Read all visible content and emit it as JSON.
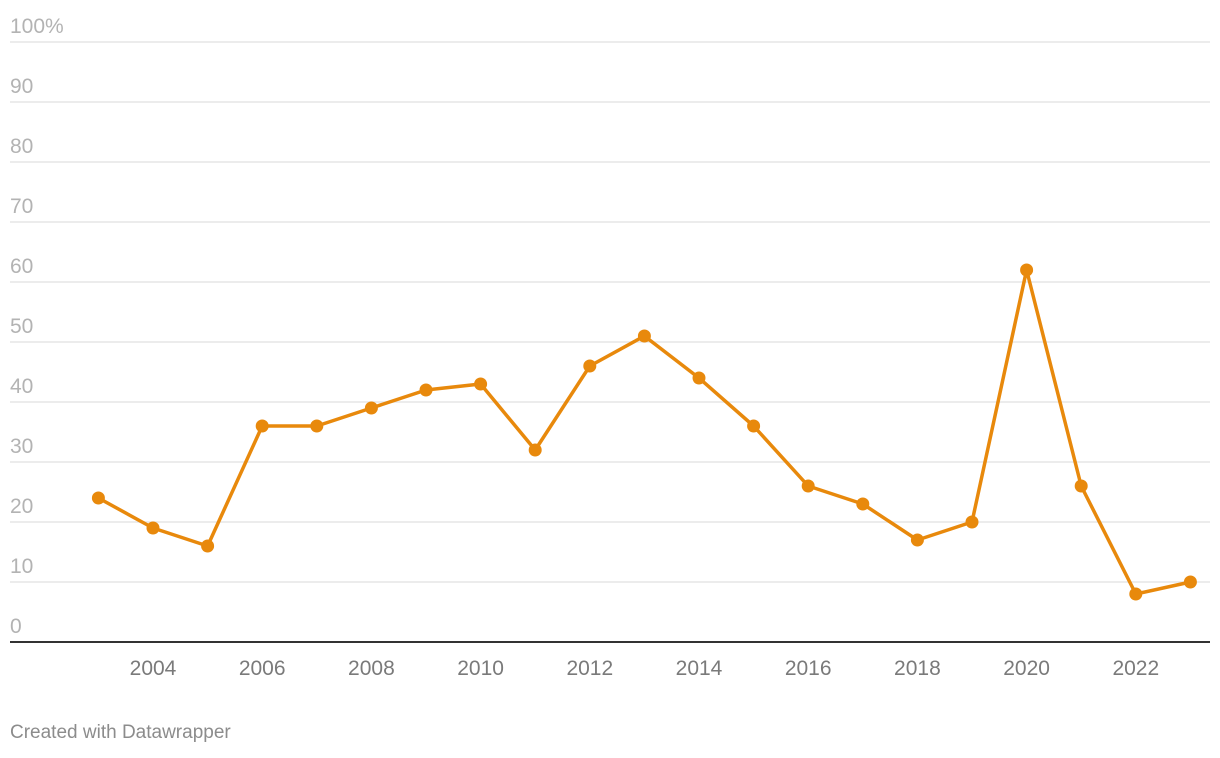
{
  "chart_data": {
    "type": "line",
    "title": "",
    "xlabel": "",
    "ylabel": "",
    "x": [
      2003,
      2004,
      2005,
      2006,
      2007,
      2008,
      2009,
      2010,
      2011,
      2012,
      2013,
      2014,
      2015,
      2016,
      2017,
      2018,
      2019,
      2020,
      2021,
      2022,
      2023
    ],
    "series": [
      {
        "values": [
          24,
          19,
          16,
          36,
          36,
          39,
          42,
          43,
          32,
          46,
          51,
          44,
          36,
          26,
          23,
          17,
          20,
          62,
          26,
          8,
          10
        ],
        "color": "#e8890c"
      }
    ],
    "ylim": [
      0,
      100
    ],
    "xlim": [
      2001.4,
      2023.4
    ],
    "yticks": [
      0,
      10,
      20,
      30,
      40,
      50,
      60,
      70,
      80,
      90,
      100
    ],
    "ytick_labels": [
      "0",
      "10",
      "20",
      "30",
      "40",
      "50",
      "60",
      "70",
      "80",
      "90",
      "100%"
    ],
    "xticks": [
      2004,
      2006,
      2008,
      2010,
      2012,
      2014,
      2016,
      2018,
      2020,
      2022
    ],
    "xtick_labels": [
      "2004",
      "2006",
      "2008",
      "2010",
      "2012",
      "2014",
      "2016",
      "2018",
      "2020",
      "2022"
    ],
    "grid": true,
    "legend": "none"
  },
  "footer": {
    "credit": "Created with Datawrapper"
  }
}
